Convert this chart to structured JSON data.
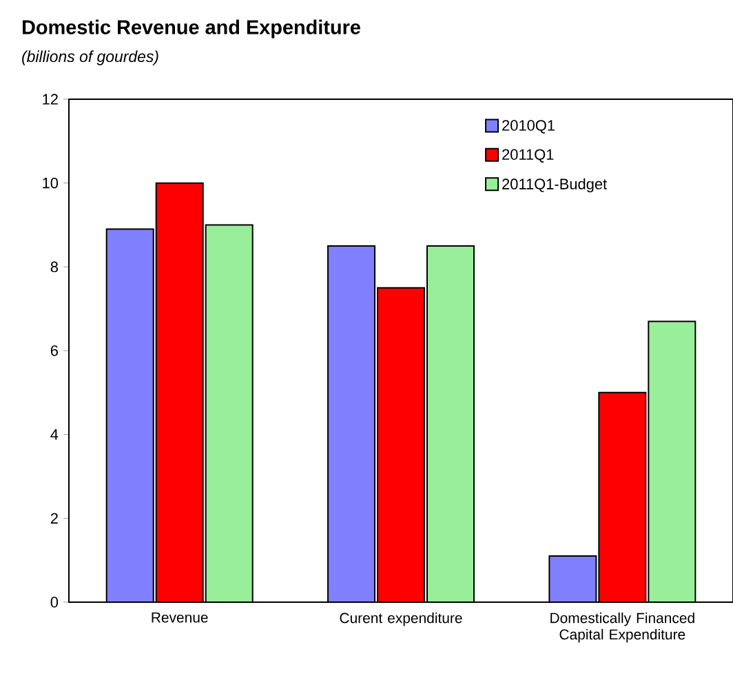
{
  "chart_data": {
    "type": "bar",
    "title": "Domestic Revenue and Expenditure",
    "subtitle": "(billions of gourdes)",
    "categories": [
      "Revenue",
      "Curent expenditure",
      "Domestically Financed Capital Expenditure"
    ],
    "series": [
      {
        "name": "2010Q1",
        "color": "#8080ff",
        "values": [
          8.9,
          8.5,
          1.1
        ]
      },
      {
        "name": "2011Q1",
        "color": "#ff0000",
        "values": [
          10.0,
          7.5,
          5.0
        ]
      },
      {
        "name": "2011Q1-Budget",
        "color": "#99ee99",
        "values": [
          9.0,
          8.5,
          6.7
        ]
      }
    ],
    "ylim": [
      0,
      12
    ],
    "yticks": [
      0,
      2,
      4,
      6,
      8,
      10,
      12
    ],
    "legend": "top right",
    "grid": false
  }
}
